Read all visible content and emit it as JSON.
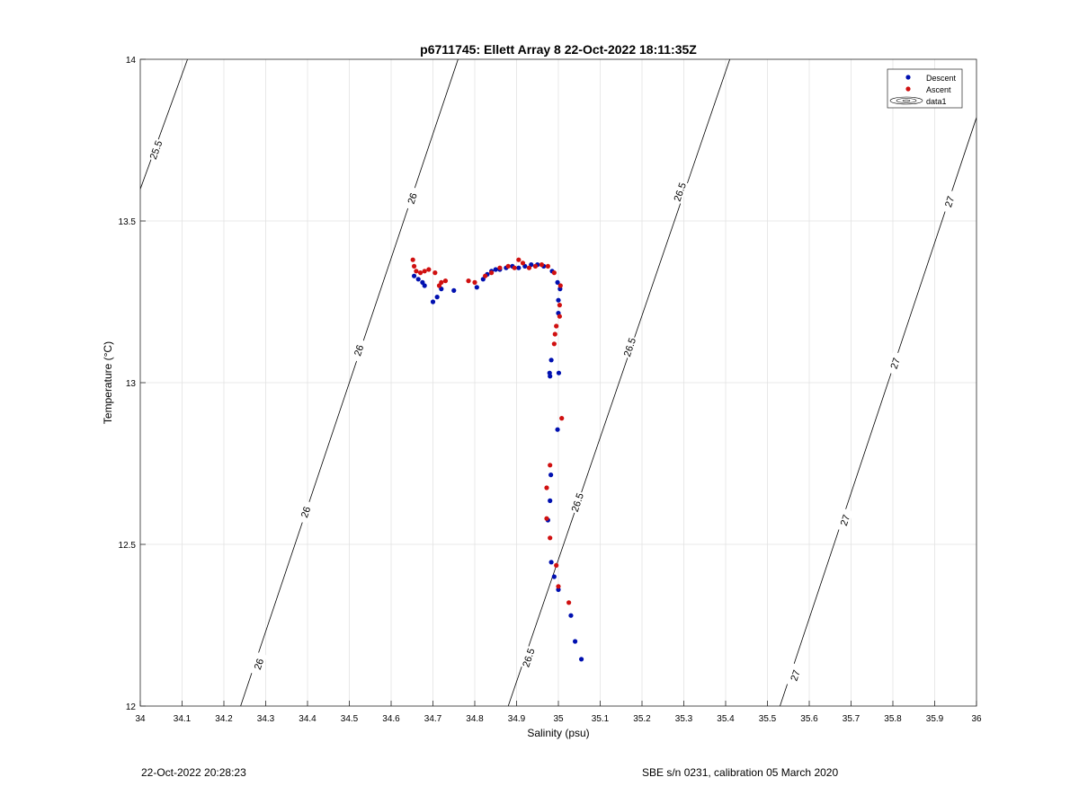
{
  "chart_data": {
    "type": "scatter",
    "title": "p6711745: Ellett Array 8 22-Oct-2022 18:11:35Z",
    "xlabel": "Salinity (psu)",
    "ylabel": "Temperature (°C)",
    "xlim": [
      34,
      36
    ],
    "ylim": [
      12,
      14
    ],
    "x_ticks": [
      34,
      34.1,
      34.2,
      34.3,
      34.4,
      34.5,
      34.6,
      34.7,
      34.8,
      34.9,
      35,
      35.1,
      35.2,
      35.3,
      35.4,
      35.5,
      35.6,
      35.7,
      35.8,
      35.9,
      36
    ],
    "x_tick_labels": [
      "34",
      "34.1",
      "34.2",
      "34.3",
      "34.4",
      "34.5",
      "34.6",
      "34.7",
      "34.8",
      "34.9",
      "35",
      "35.1",
      "35.2",
      "35.3",
      "35.4",
      "35.5",
      "35.6",
      "35.7",
      "35.8",
      "35.9",
      "36"
    ],
    "y_ticks": [
      12,
      12.5,
      13,
      13.5,
      14
    ],
    "y_tick_labels": [
      "12",
      "12.5",
      "13",
      "13.5",
      "14"
    ],
    "grid": true,
    "legend_position": "top-right",
    "legend": [
      {
        "label": "Descent",
        "marker": "dot",
        "color": "#0010b0"
      },
      {
        "label": "Ascent",
        "marker": "dot",
        "color": "#d01010"
      },
      {
        "label": "data1",
        "marker": "contour"
      }
    ],
    "series": [
      {
        "name": "Descent",
        "color": "#0010b0",
        "points": [
          [
            35.055,
            12.145
          ],
          [
            35.04,
            12.2
          ],
          [
            35.03,
            12.28
          ],
          [
            35.0,
            12.36
          ],
          [
            34.99,
            12.4
          ],
          [
            34.983,
            12.445
          ],
          [
            34.975,
            12.575
          ],
          [
            34.98,
            12.635
          ],
          [
            34.982,
            12.715
          ],
          [
            34.998,
            12.855
          ],
          [
            35.001,
            13.03
          ],
          [
            34.98,
            13.02
          ],
          [
            34.979,
            13.03
          ],
          [
            34.983,
            13.07
          ],
          [
            35.0,
            13.215
          ],
          [
            35.0,
            13.255
          ],
          [
            35.004,
            13.29
          ],
          [
            34.998,
            13.31
          ],
          [
            34.985,
            13.345
          ],
          [
            34.965,
            13.36
          ],
          [
            34.95,
            13.365
          ],
          [
            34.935,
            13.365
          ],
          [
            34.92,
            13.36
          ],
          [
            34.905,
            13.355
          ],
          [
            34.89,
            13.36
          ],
          [
            34.875,
            13.355
          ],
          [
            34.86,
            13.35
          ],
          [
            34.85,
            13.35
          ],
          [
            34.84,
            13.345
          ],
          [
            34.83,
            13.335
          ],
          [
            34.82,
            13.32
          ],
          [
            34.805,
            13.295
          ],
          [
            34.75,
            13.285
          ],
          [
            34.72,
            13.29
          ],
          [
            34.71,
            13.265
          ],
          [
            34.7,
            13.25
          ],
          [
            34.68,
            13.3
          ],
          [
            34.675,
            13.31
          ],
          [
            34.665,
            13.32
          ],
          [
            34.655,
            13.33
          ]
        ]
      },
      {
        "name": "Ascent",
        "color": "#d01010",
        "points": [
          [
            35.025,
            12.32
          ],
          [
            35.0,
            12.37
          ],
          [
            34.995,
            12.435
          ],
          [
            34.98,
            12.52
          ],
          [
            34.972,
            12.58
          ],
          [
            34.972,
            12.675
          ],
          [
            34.98,
            12.745
          ],
          [
            35.008,
            12.89
          ],
          [
            34.99,
            13.12
          ],
          [
            34.992,
            13.15
          ],
          [
            34.995,
            13.175
          ],
          [
            35.003,
            13.205
          ],
          [
            35.003,
            13.24
          ],
          [
            35.005,
            13.3
          ],
          [
            34.99,
            13.34
          ],
          [
            34.975,
            13.36
          ],
          [
            34.96,
            13.365
          ],
          [
            34.945,
            13.36
          ],
          [
            34.93,
            13.355
          ],
          [
            34.915,
            13.37
          ],
          [
            34.905,
            13.38
          ],
          [
            34.895,
            13.355
          ],
          [
            34.88,
            13.36
          ],
          [
            34.86,
            13.355
          ],
          [
            34.84,
            13.34
          ],
          [
            34.825,
            13.33
          ],
          [
            34.8,
            13.31
          ],
          [
            34.785,
            13.315
          ],
          [
            34.73,
            13.315
          ],
          [
            34.72,
            13.31
          ],
          [
            34.715,
            13.3
          ],
          [
            34.705,
            13.34
          ],
          [
            34.69,
            13.35
          ],
          [
            34.68,
            13.345
          ],
          [
            34.67,
            13.34
          ],
          [
            34.66,
            13.345
          ],
          [
            34.655,
            13.36
          ],
          [
            34.652,
            13.38
          ]
        ]
      }
    ],
    "contours": [
      {
        "level": "25.5",
        "points": [
          [
            33.983,
            13.538
          ],
          [
            34.113,
            14.0
          ]
        ],
        "label_positions": [
          [
            34.037,
            13.72
          ]
        ]
      },
      {
        "level": "26",
        "points": [
          [
            34.24,
            12.0
          ],
          [
            34.76,
            14.0
          ]
        ],
        "label_positions": [
          [
            34.283,
            12.13
          ],
          [
            34.395,
            12.6
          ],
          [
            34.522,
            13.1
          ],
          [
            34.65,
            13.57
          ]
        ]
      },
      {
        "level": "26.5",
        "points": [
          [
            34.88,
            12.0
          ],
          [
            35.41,
            14.0
          ]
        ],
        "label_positions": [
          [
            34.928,
            12.15
          ],
          [
            35.045,
            12.63
          ],
          [
            35.17,
            13.11
          ],
          [
            35.29,
            13.59
          ]
        ]
      },
      {
        "level": "27",
        "points": [
          [
            35.53,
            12.0
          ],
          [
            36.0,
            13.82
          ]
        ],
        "label_positions": [
          [
            35.566,
            12.095
          ],
          [
            35.685,
            12.575
          ],
          [
            35.805,
            13.06
          ],
          [
            35.935,
            13.56
          ]
        ]
      }
    ]
  },
  "footer": {
    "left": "22-Oct-2022 20:28:23",
    "right": "SBE s/n 0231, calibration 05 March 2020"
  }
}
